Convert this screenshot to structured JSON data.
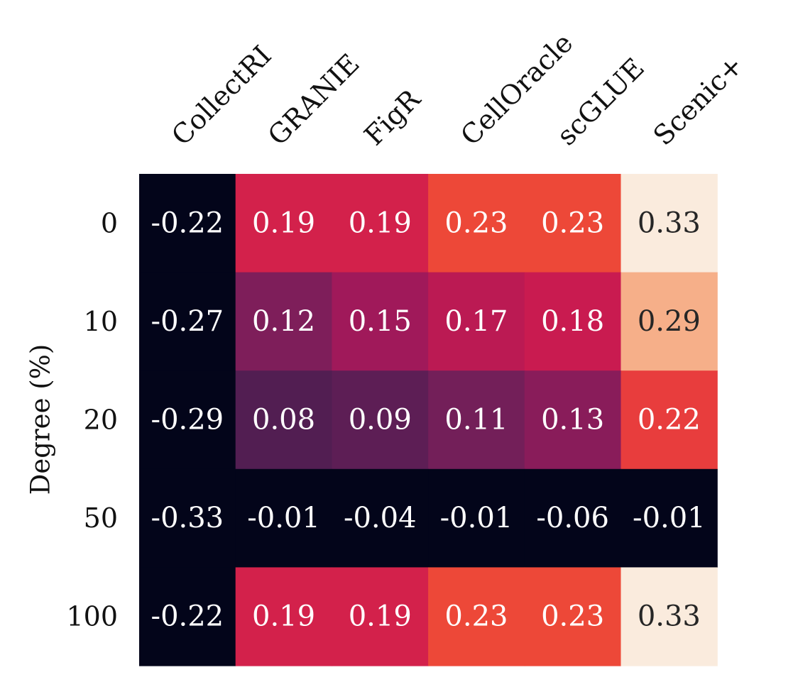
{
  "chart_data": {
    "type": "heatmap",
    "title": "",
    "xlabel": "",
    "ylabel": "Degree (%)",
    "x_categories": [
      "CollectRI",
      "GRANIE",
      "FigR",
      "CellOracle",
      "scGLUE",
      "Scenic+"
    ],
    "y_categories": [
      "0",
      "10",
      "20",
      "50",
      "100"
    ],
    "values": [
      [
        -0.22,
        0.19,
        0.19,
        0.23,
        0.23,
        0.33
      ],
      [
        -0.27,
        0.12,
        0.15,
        0.17,
        0.18,
        0.29
      ],
      [
        -0.29,
        0.08,
        0.09,
        0.11,
        0.13,
        0.22
      ],
      [
        -0.33,
        -0.01,
        -0.04,
        -0.01,
        -0.06,
        -0.01
      ],
      [
        -0.22,
        0.19,
        0.19,
        0.23,
        0.23,
        0.33
      ]
    ],
    "labels": [
      [
        "-0.22",
        "0.19",
        "0.19",
        "0.23",
        "0.23",
        "0.33"
      ],
      [
        "-0.27",
        "0.12",
        "0.15",
        "0.17",
        "0.18",
        "0.29"
      ],
      [
        "-0.29",
        "0.08",
        "0.09",
        "0.11",
        "0.13",
        "0.22"
      ],
      [
        "-0.33",
        "-0.01",
        "-0.04",
        "-0.01",
        "-0.06",
        "-0.01"
      ],
      [
        "-0.22",
        "0.19",
        "0.19",
        "0.23",
        "0.23",
        "0.33"
      ]
    ],
    "colormap": "rocket",
    "vmin": 0,
    "vmax": 0.33,
    "colorbar": false,
    "grid": false,
    "annot_light_color": "#ffffff",
    "annot_dark_color": "#262626"
  }
}
